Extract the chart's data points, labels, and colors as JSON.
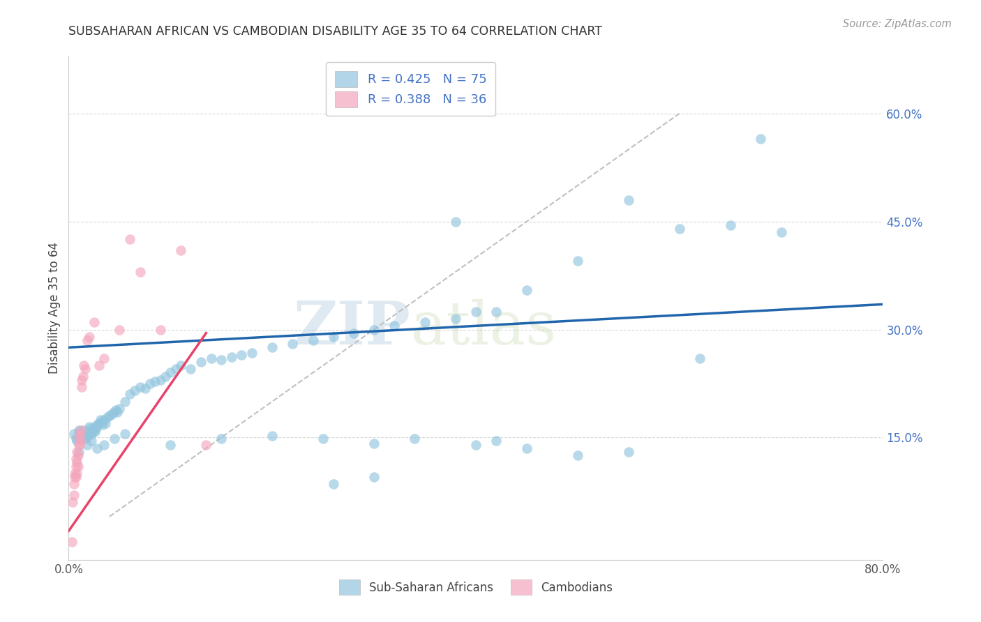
{
  "title": "SUBSAHARAN AFRICAN VS CAMBODIAN DISABILITY AGE 35 TO 64 CORRELATION CHART",
  "source": "Source: ZipAtlas.com",
  "ylabel": "Disability Age 35 to 64",
  "xlim": [
    0.0,
    0.8
  ],
  "ylim": [
    -0.02,
    0.68
  ],
  "xtick_positions": [
    0.0,
    0.1,
    0.2,
    0.3,
    0.4,
    0.5,
    0.6,
    0.7,
    0.8
  ],
  "xticklabels": [
    "0.0%",
    "",
    "",
    "",
    "",
    "",
    "",
    "",
    "80.0%"
  ],
  "ytick_positions": [
    0.15,
    0.3,
    0.45,
    0.6
  ],
  "yticklabels": [
    "15.0%",
    "30.0%",
    "45.0%",
    "60.0%"
  ],
  "legend1_label": "R = 0.425   N = 75",
  "legend2_label": "R = 0.388   N = 36",
  "legend_bottom_label1": "Sub-Saharan Africans",
  "legend_bottom_label2": "Cambodians",
  "blue_color": "#92c5de",
  "pink_color": "#f4a6bc",
  "blue_line_color": "#2166ac",
  "pink_line_color": "#e8436a",
  "diagonal_color": "#c0c0c0",
  "watermark_zip": "ZIP",
  "watermark_atlas": "atlas",
  "blue_scatter_x": [
    0.005,
    0.007,
    0.008,
    0.009,
    0.01,
    0.01,
    0.01,
    0.011,
    0.012,
    0.012,
    0.013,
    0.014,
    0.015,
    0.015,
    0.016,
    0.017,
    0.018,
    0.019,
    0.02,
    0.02,
    0.021,
    0.022,
    0.023,
    0.025,
    0.025,
    0.026,
    0.027,
    0.028,
    0.03,
    0.031,
    0.032,
    0.033,
    0.035,
    0.036,
    0.038,
    0.04,
    0.042,
    0.044,
    0.046,
    0.048,
    0.05,
    0.055,
    0.06,
    0.065,
    0.07,
    0.075,
    0.08,
    0.085,
    0.09,
    0.095,
    0.1,
    0.105,
    0.11,
    0.12,
    0.13,
    0.14,
    0.15,
    0.16,
    0.17,
    0.18,
    0.2,
    0.22,
    0.24,
    0.26,
    0.28,
    0.3,
    0.32,
    0.35,
    0.38,
    0.4,
    0.45,
    0.5,
    0.55,
    0.62,
    0.68
  ],
  "blue_scatter_y": [
    0.155,
    0.148,
    0.145,
    0.15,
    0.152,
    0.155,
    0.16,
    0.158,
    0.15,
    0.155,
    0.148,
    0.152,
    0.16,
    0.155,
    0.148,
    0.15,
    0.155,
    0.152,
    0.158,
    0.165,
    0.162,
    0.155,
    0.158,
    0.16,
    0.165,
    0.158,
    0.163,
    0.168,
    0.17,
    0.175,
    0.172,
    0.168,
    0.175,
    0.17,
    0.178,
    0.18,
    0.182,
    0.185,
    0.188,
    0.185,
    0.19,
    0.2,
    0.21,
    0.215,
    0.22,
    0.218,
    0.225,
    0.228,
    0.23,
    0.235,
    0.24,
    0.245,
    0.25,
    0.245,
    0.255,
    0.26,
    0.258,
    0.262,
    0.265,
    0.268,
    0.275,
    0.28,
    0.285,
    0.29,
    0.295,
    0.3,
    0.305,
    0.31,
    0.315,
    0.325,
    0.355,
    0.395,
    0.48,
    0.26,
    0.565
  ],
  "blue_scatter_x2": [
    0.01,
    0.018,
    0.022,
    0.028,
    0.035,
    0.045,
    0.055,
    0.1,
    0.15,
    0.2,
    0.25,
    0.3,
    0.34,
    0.4,
    0.42,
    0.45,
    0.5,
    0.55,
    0.6,
    0.65,
    0.7,
    0.38,
    0.42,
    0.26,
    0.3
  ],
  "blue_scatter_y2": [
    0.13,
    0.14,
    0.145,
    0.135,
    0.14,
    0.148,
    0.155,
    0.14,
    0.148,
    0.152,
    0.148,
    0.142,
    0.148,
    0.14,
    0.145,
    0.135,
    0.125,
    0.13,
    0.44,
    0.445,
    0.435,
    0.45,
    0.325,
    0.085,
    0.095
  ],
  "pink_scatter_x": [
    0.003,
    0.004,
    0.005,
    0.005,
    0.006,
    0.006,
    0.007,
    0.007,
    0.007,
    0.008,
    0.008,
    0.008,
    0.009,
    0.009,
    0.01,
    0.01,
    0.011,
    0.011,
    0.012,
    0.012,
    0.013,
    0.013,
    0.014,
    0.015,
    0.016,
    0.018,
    0.02,
    0.025,
    0.03,
    0.035,
    0.05,
    0.06,
    0.07,
    0.09,
    0.11,
    0.135
  ],
  "pink_scatter_y": [
    0.005,
    0.06,
    0.07,
    0.085,
    0.095,
    0.1,
    0.095,
    0.11,
    0.12,
    0.1,
    0.115,
    0.13,
    0.11,
    0.125,
    0.14,
    0.15,
    0.14,
    0.155,
    0.145,
    0.16,
    0.22,
    0.23,
    0.235,
    0.25,
    0.245,
    0.285,
    0.29,
    0.31,
    0.25,
    0.26,
    0.3,
    0.425,
    0.38,
    0.3,
    0.41,
    0.14
  ],
  "blue_line_x": [
    0.0,
    0.8
  ],
  "blue_line_y": [
    0.275,
    0.335
  ],
  "pink_line_x": [
    0.0,
    0.135
  ],
  "pink_line_y": [
    0.02,
    0.295
  ],
  "diag_line_x": [
    0.04,
    0.6
  ],
  "diag_line_y": [
    0.04,
    0.6
  ],
  "background_color": "#ffffff",
  "grid_color": "#d0d0d0"
}
